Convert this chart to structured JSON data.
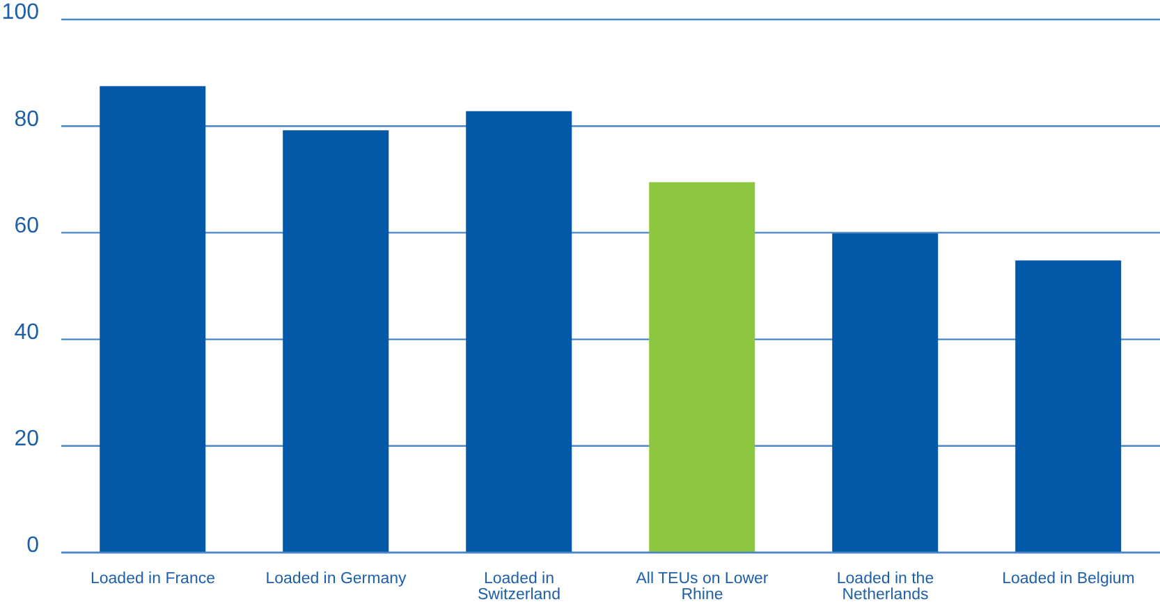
{
  "chart_data": {
    "type": "bar",
    "categories": [
      "Loaded in France",
      "Loaded in Germany",
      "Loaded in Switzerland",
      "All TEUs on Lower Rhine",
      "Loaded in the Netherlands",
      "Loaded in Belgium"
    ],
    "values": [
      87.5,
      79.2,
      82.8,
      69.5,
      59.9,
      54.8
    ],
    "colors": [
      "#0359a8",
      "#0359a8",
      "#0359a8",
      "#8dc63f",
      "#0359a8",
      "#0359a8"
    ],
    "ylim": [
      0,
      100
    ],
    "yticks": [
      0,
      20,
      40,
      60,
      80,
      100
    ],
    "grid": "y"
  }
}
